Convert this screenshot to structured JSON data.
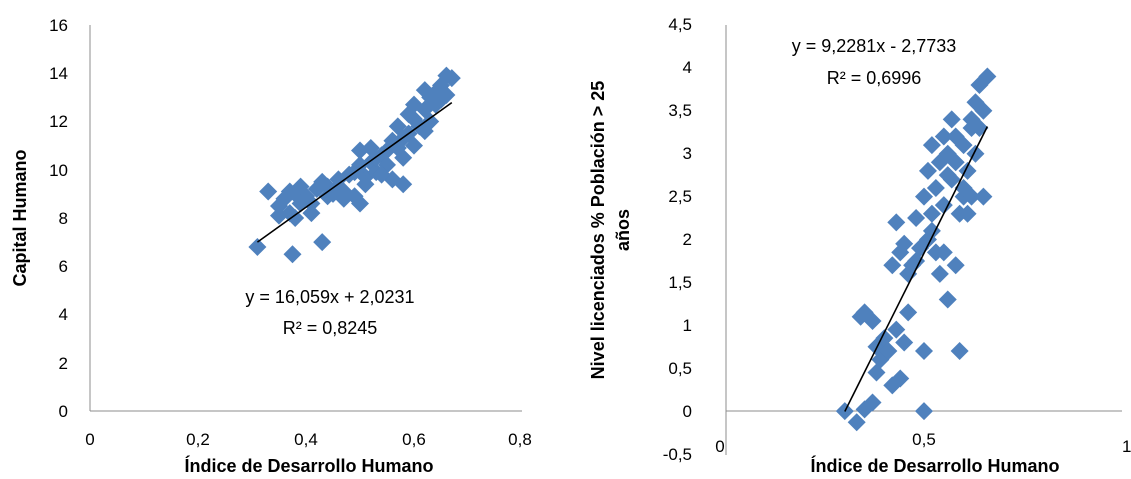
{
  "chart_data": [
    {
      "type": "scatter",
      "xlabel": "Índice de Desarrollo Humano",
      "ylabel": "Capital Humano",
      "xlim": [
        0,
        0.8
      ],
      "ylim": [
        0,
        16
      ],
      "x_ticks": [
        "0",
        "0,2",
        "0,4",
        "0,6",
        "0,8"
      ],
      "y_ticks": [
        "0",
        "2",
        "4",
        "6",
        "8",
        "10",
        "12",
        "14",
        "16"
      ],
      "marker_color": "#4f81bd",
      "grid": false,
      "equation": "y = 16,059x + 2,0231",
      "r_squared": "R² = 0,8245",
      "trendline": {
        "slope": 16.059,
        "intercept": 2.0231,
        "x_range": [
          0.31,
          0.67
        ]
      },
      "series": [
        {
          "points": [
            [
              0.31,
              6.8
            ],
            [
              0.375,
              6.5
            ],
            [
              0.43,
              7.0
            ],
            [
              0.33,
              9.1
            ],
            [
              0.35,
              8.5
            ],
            [
              0.36,
              8.8
            ],
            [
              0.37,
              8.2
            ],
            [
              0.38,
              8.0
            ],
            [
              0.38,
              9.0
            ],
            [
              0.39,
              9.3
            ],
            [
              0.4,
              8.9
            ],
            [
              0.41,
              8.6
            ],
            [
              0.42,
              9.2
            ],
            [
              0.43,
              9.5
            ],
            [
              0.44,
              9.3
            ],
            [
              0.45,
              9.0
            ],
            [
              0.46,
              9.6
            ],
            [
              0.47,
              9.1
            ],
            [
              0.48,
              9.8
            ],
            [
              0.49,
              8.9
            ],
            [
              0.5,
              8.6
            ],
            [
              0.5,
              10.2
            ],
            [
              0.51,
              9.7
            ],
            [
              0.52,
              10.3
            ],
            [
              0.53,
              9.9
            ],
            [
              0.54,
              10.6
            ],
            [
              0.55,
              10.2
            ],
            [
              0.56,
              9.6
            ],
            [
              0.57,
              10.9
            ],
            [
              0.58,
              9.4
            ],
            [
              0.58,
              11.3
            ],
            [
              0.59,
              11.5
            ],
            [
              0.6,
              11.0
            ],
            [
              0.6,
              12.1
            ],
            [
              0.61,
              11.8
            ],
            [
              0.62,
              12.5
            ],
            [
              0.63,
              12.0
            ],
            [
              0.63,
              13.0
            ],
            [
              0.64,
              12.7
            ],
            [
              0.65,
              13.5
            ],
            [
              0.66,
              13.1
            ],
            [
              0.67,
              13.8
            ],
            [
              0.66,
              13.9
            ],
            [
              0.64,
              13.2
            ],
            [
              0.62,
              11.6
            ],
            [
              0.59,
              12.3
            ],
            [
              0.57,
              11.8
            ],
            [
              0.55,
              10.8
            ],
            [
              0.53,
              10.5
            ],
            [
              0.51,
              9.4
            ],
            [
              0.49,
              9.9
            ],
            [
              0.47,
              8.8
            ],
            [
              0.46,
              9.3
            ],
            [
              0.44,
              8.9
            ],
            [
              0.41,
              8.2
            ],
            [
              0.39,
              8.6
            ],
            [
              0.37,
              9.1
            ],
            [
              0.35,
              8.1
            ],
            [
              0.56,
              11.2
            ],
            [
              0.6,
              12.7
            ],
            [
              0.62,
              13.3
            ],
            [
              0.65,
              12.9
            ],
            [
              0.58,
              10.5
            ],
            [
              0.54,
              9.8
            ],
            [
              0.52,
              10.9
            ],
            [
              0.5,
              10.8
            ]
          ]
        }
      ]
    },
    {
      "type": "scatter",
      "xlabel": "Índice de Desarrollo Humano",
      "ylabel": "Nivel licenciados % Población > 25 años",
      "xlim": [
        0,
        1
      ],
      "ylim": [
        -0.5,
        4.5
      ],
      "x_ticks": [
        "0",
        "0,5",
        "1"
      ],
      "y_ticks": [
        "-0,5",
        "0",
        "0,5",
        "1",
        "1,5",
        "2",
        "2,5",
        "3",
        "3,5",
        "4",
        "4,5"
      ],
      "marker_color": "#4f81bd",
      "grid": false,
      "equation": "y = 9,2281x - 2,7733",
      "r_squared": "R² = 0,6996",
      "trendline": {
        "slope": 9.2281,
        "intercept": -2.7733,
        "x_range": [
          0.3,
          0.66
        ]
      },
      "series": [
        {
          "points": [
            [
              0.3,
              0.0
            ],
            [
              0.33,
              -0.13
            ],
            [
              0.35,
              0.02
            ],
            [
              0.34,
              1.1
            ],
            [
              0.35,
              1.15
            ],
            [
              0.37,
              1.05
            ],
            [
              0.38,
              0.75
            ],
            [
              0.38,
              0.45
            ],
            [
              0.39,
              0.6
            ],
            [
              0.37,
              0.1
            ],
            [
              0.4,
              0.85
            ],
            [
              0.41,
              0.7
            ],
            [
              0.42,
              0.3
            ],
            [
              0.43,
              0.95
            ],
            [
              0.44,
              0.38
            ],
            [
              0.45,
              0.8
            ],
            [
              0.46,
              1.15
            ],
            [
              0.42,
              1.7
            ],
            [
              0.43,
              2.2
            ],
            [
              0.44,
              1.85
            ],
            [
              0.45,
              1.95
            ],
            [
              0.46,
              1.6
            ],
            [
              0.47,
              1.7
            ],
            [
              0.48,
              2.25
            ],
            [
              0.49,
              1.9
            ],
            [
              0.5,
              0.7
            ],
            [
              0.5,
              2.5
            ],
            [
              0.51,
              2.8
            ],
            [
              0.52,
              3.1
            ],
            [
              0.53,
              2.6
            ],
            [
              0.53,
              1.85
            ],
            [
              0.54,
              1.6
            ],
            [
              0.54,
              2.9
            ],
            [
              0.55,
              3.2
            ],
            [
              0.55,
              2.4
            ],
            [
              0.56,
              1.3
            ],
            [
              0.56,
              3.0
            ],
            [
              0.57,
              2.7
            ],
            [
              0.57,
              3.4
            ],
            [
              0.58,
              2.9
            ],
            [
              0.58,
              1.7
            ],
            [
              0.59,
              2.3
            ],
            [
              0.59,
              0.7
            ],
            [
              0.6,
              2.5
            ],
            [
              0.6,
              3.1
            ],
            [
              0.61,
              2.8
            ],
            [
              0.62,
              3.3
            ],
            [
              0.62,
              2.5
            ],
            [
              0.63,
              3.0
            ],
            [
              0.63,
              3.6
            ],
            [
              0.64,
              3.8
            ],
            [
              0.64,
              3.3
            ],
            [
              0.65,
              3.5
            ],
            [
              0.66,
              3.9
            ],
            [
              0.65,
              2.5
            ],
            [
              0.61,
              2.3
            ],
            [
              0.55,
              1.85
            ],
            [
              0.52,
              2.1
            ],
            [
              0.5,
              0.0
            ],
            [
              0.48,
              1.75
            ],
            [
              0.58,
              3.2
            ],
            [
              0.6,
              2.6
            ],
            [
              0.56,
              2.75
            ],
            [
              0.52,
              2.3
            ],
            [
              0.51,
              2.0
            ],
            [
              0.62,
              3.4
            ]
          ]
        }
      ]
    }
  ]
}
